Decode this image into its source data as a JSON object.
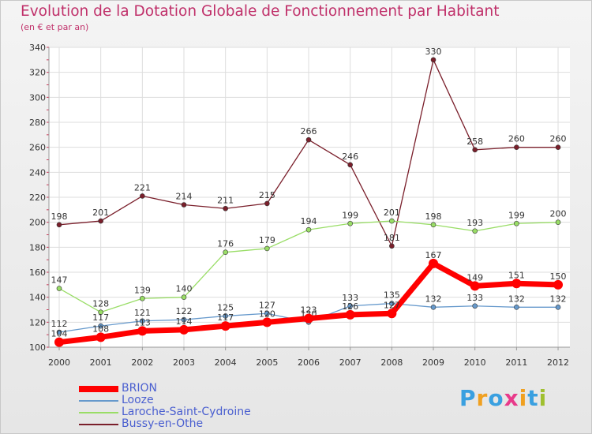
{
  "title": "Evolution de la Dotation Globale de Fonctionnement par Habitant",
  "subtitle": "(en € et par an)",
  "logo": {
    "text": "Proxiti",
    "colors": [
      "#3aa0e0",
      "#f0a020",
      "#3aa0e0",
      "#e83a8a",
      "#f0a020",
      "#3aa0e0",
      "#a0c030"
    ]
  },
  "chart_data": {
    "type": "line",
    "title": "Evolution de la Dotation Globale de Fonctionnement par Habitant",
    "ylabel": "(en € et par an)",
    "xlabel": "",
    "x": [
      "2000",
      "2001",
      "2002",
      "2003",
      "2004",
      "2005",
      "2006",
      "2007",
      "2008",
      "2009",
      "2010",
      "2011",
      "2012"
    ],
    "ylim": [
      100,
      340
    ],
    "yticks": [
      100,
      120,
      140,
      160,
      180,
      200,
      220,
      240,
      260,
      280,
      300,
      320,
      340
    ],
    "grid": true,
    "legend": "bottom-left",
    "series": [
      {
        "name": "Bussy-en-Othe",
        "color": "#7a1f2b",
        "values": [
          198,
          201,
          221,
          214,
          211,
          215,
          266,
          246,
          181,
          330,
          258,
          260,
          260
        ]
      },
      {
        "name": "Laroche-Saint-Cydroine",
        "color": "#99dd66",
        "values": [
          147,
          128,
          139,
          140,
          176,
          179,
          194,
          199,
          201,
          198,
          193,
          199,
          200
        ]
      },
      {
        "name": "Looze",
        "color": "#6699cc",
        "values": [
          112,
          117,
          121,
          122,
          125,
          127,
          120,
          133,
          135,
          132,
          133,
          132,
          132
        ]
      },
      {
        "name": "BRION",
        "color": "#ff0000",
        "values": [
          104,
          108,
          113,
          114,
          117,
          120,
          123,
          126,
          127,
          167,
          149,
          151,
          150
        ]
      }
    ],
    "legend_order": [
      "BRION",
      "Looze",
      "Laroche-Saint-Cydroine",
      "Bussy-en-Othe"
    ]
  }
}
